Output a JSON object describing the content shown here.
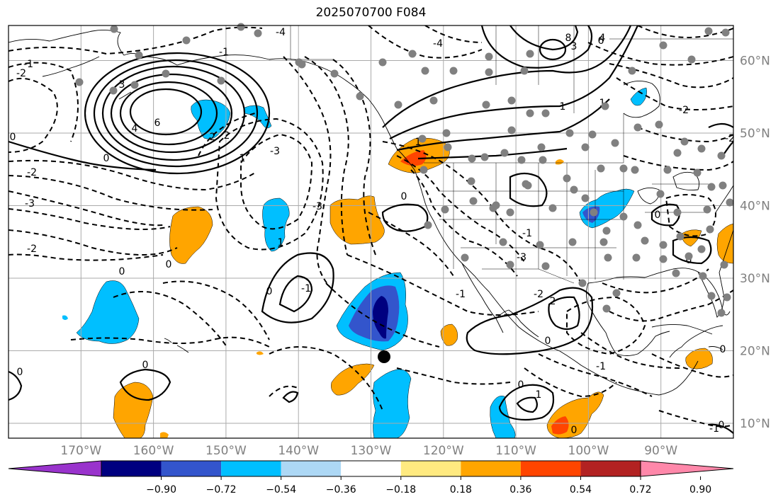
{
  "title": "2025070700 F084",
  "map": {
    "lon_range": [
      -180,
      -80
    ],
    "lat_range": [
      8,
      65
    ],
    "grid_spacing_deg": 10,
    "latitude_labels": [
      "60°N",
      "50°N",
      "40°N",
      "30°N",
      "20°N",
      "10°N"
    ],
    "longitude_labels": [
      "170°W",
      "160°W",
      "150°W",
      "140°W",
      "130°W",
      "120°W",
      "110°W",
      "100°W",
      "90°W"
    ],
    "contour_labels": [
      "0",
      "0",
      "0",
      "0",
      "0",
      "0",
      "0",
      "0",
      "0",
      "0",
      "0",
      "0",
      "0",
      "0",
      "0",
      "-1",
      "-1",
      "-1",
      "-1",
      "-1",
      "-1",
      "-1",
      "-2",
      "-2",
      "-2",
      "-2",
      "-2",
      "-2",
      "-3",
      "-3",
      "-3",
      "-3",
      "-4",
      "-4",
      "1",
      "1",
      "1",
      "1",
      "1",
      "1",
      "2",
      "2",
      "2",
      "3",
      "3",
      "4",
      "4",
      "6",
      "6",
      "8"
    ],
    "marker_label": "storm-center"
  },
  "colorbar": {
    "ticks": [
      "−0.90",
      "−0.72",
      "−0.54",
      "−0.36",
      "−0.18",
      "0.18",
      "0.36",
      "0.54",
      "0.72",
      "0.90"
    ],
    "colors": [
      "#9933cc",
      "#000080",
      "#3355cc",
      "#00bfff",
      "#add8f5",
      "#ffffff",
      "#ffea80",
      "#ffa500",
      "#ff4500",
      "#b22222",
      "#ff88aa"
    ]
  },
  "colors": {
    "grid": "#aaaaaa",
    "tick_label": "#808080",
    "contour": "#000000"
  }
}
